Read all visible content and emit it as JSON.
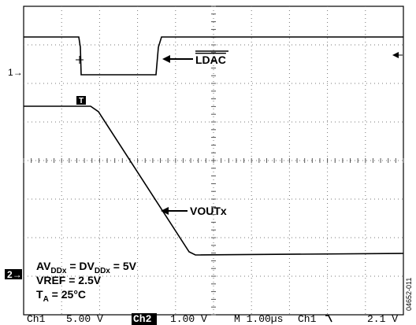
{
  "signals": {
    "ldac": "LDAC",
    "vout": "VOUTx"
  },
  "channel_markers": {
    "ch1": "1",
    "ch2": "2"
  },
  "trigger_marker": "T",
  "conditions": [
    [
      "AV",
      "DDx",
      " = DV",
      "DDx",
      " = 5V"
    ],
    [
      "VREF = 2.5V"
    ],
    [
      "T",
      "A",
      " = 25°C"
    ]
  ],
  "status_bar": {
    "ch1_label": "Ch1",
    "ch1_scale": "5.00 V",
    "ch2_label": "Ch2",
    "ch2_scale": "1.00 V",
    "timebase": "M 1.00µs",
    "trigger_source": "Ch1",
    "trigger_level": "2.1 V"
  },
  "figure_id": "04652-011"
}
